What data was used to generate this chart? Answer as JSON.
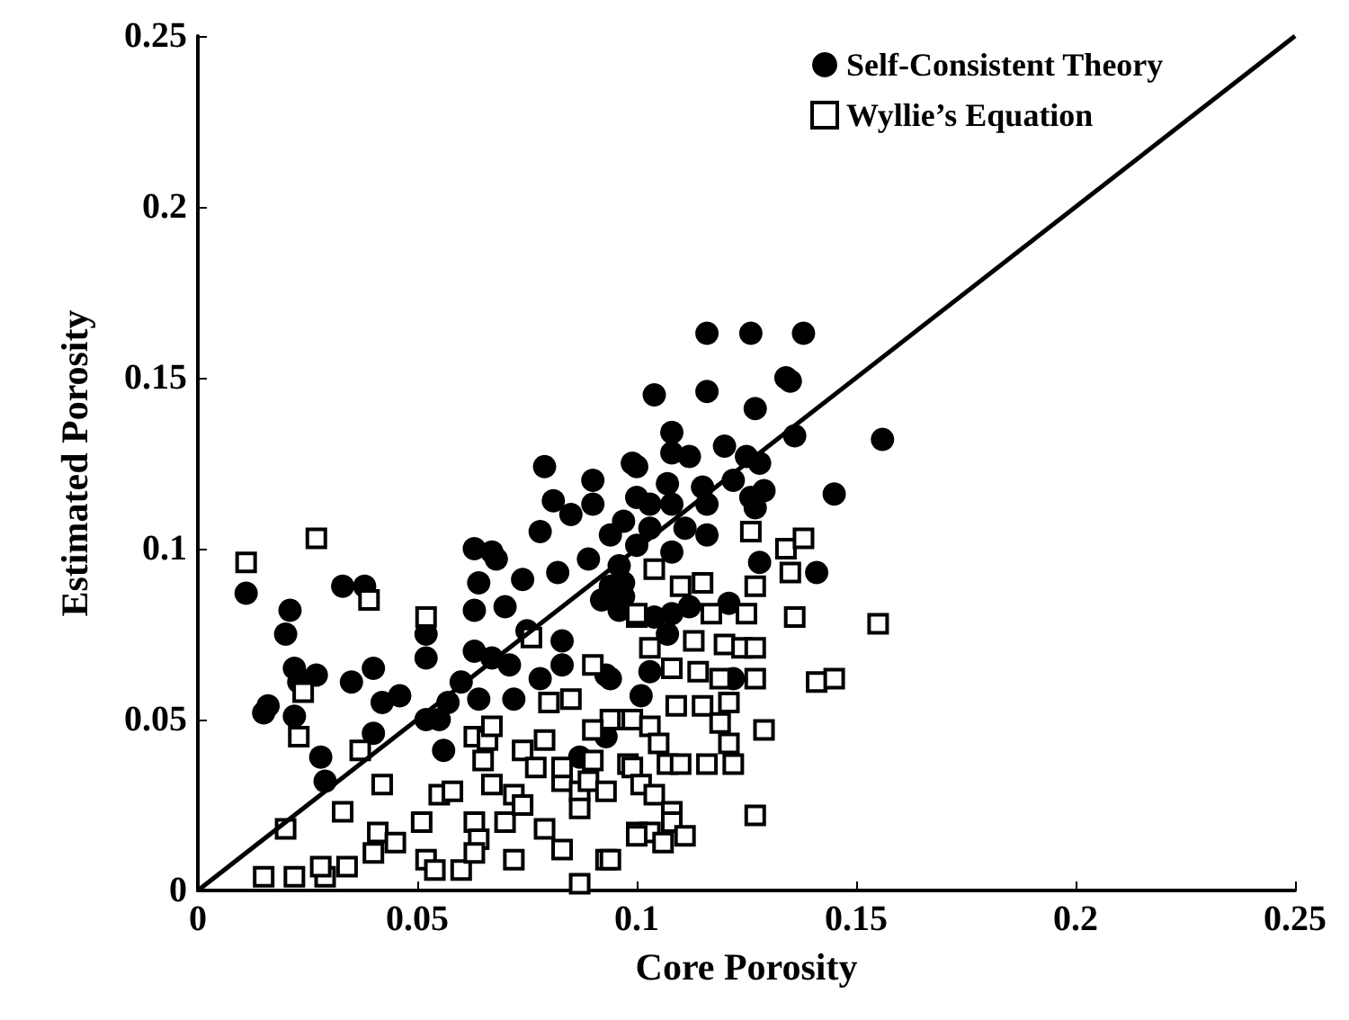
{
  "chart_data": {
    "type": "scatter",
    "xlabel": "Core Porosity",
    "ylabel": "Estimated Porosity",
    "xlim": [
      0,
      0.25
    ],
    "xticks": [
      0,
      0.05,
      0.1,
      0.15,
      0.2,
      0.25
    ],
    "ylim": [
      0,
      0.25
    ],
    "yticks": [
      0,
      0.05,
      0.1,
      0.15,
      0.2,
      0.25
    ],
    "grid": false,
    "legend": "top right",
    "series": [
      {
        "name": "Self-Consistent Theory",
        "color": "#000000",
        "marker": "circle",
        "x": [
          0.011,
          0.015,
          0.016,
          0.02,
          0.021,
          0.022,
          0.022,
          0.023,
          0.027,
          0.028,
          0.029,
          0.033,
          0.038,
          0.035,
          0.04,
          0.04,
          0.042,
          0.046,
          0.052,
          0.052,
          0.052,
          0.055,
          0.056,
          0.057,
          0.06,
          0.063,
          0.064,
          0.063,
          0.063,
          0.064,
          0.067,
          0.068,
          0.07,
          0.067,
          0.071,
          0.074,
          0.075,
          0.078,
          0.072,
          0.079,
          0.078,
          0.081,
          0.082,
          0.083,
          0.083,
          0.085,
          0.087,
          0.089,
          0.09,
          0.09,
          0.092,
          0.093,
          0.093,
          0.094,
          0.097,
          0.099,
          0.1,
          0.116,
          0.126,
          0.138,
          0.104,
          0.116,
          0.127,
          0.134,
          0.135,
          0.136,
          0.156,
          0.108,
          0.108,
          0.112,
          0.12,
          0.125,
          0.1,
          0.128,
          0.107,
          0.115,
          0.122,
          0.129,
          0.108,
          0.103,
          0.116,
          0.126,
          0.127,
          0.145,
          0.097,
          0.103,
          0.111,
          0.116,
          0.1,
          0.108,
          0.096,
          0.128,
          0.141,
          0.094,
          0.097,
          0.104,
          0.108,
          0.112,
          0.121,
          0.107,
          0.096,
          0.103,
          0.101,
          0.122,
          0.094
        ],
        "values": [
          0.087,
          0.052,
          0.054,
          0.075,
          0.082,
          0.051,
          0.065,
          0.061,
          0.063,
          0.039,
          0.032,
          0.089,
          0.089,
          0.061,
          0.065,
          0.046,
          0.055,
          0.057,
          0.075,
          0.068,
          0.05,
          0.05,
          0.041,
          0.055,
          0.061,
          0.1,
          0.09,
          0.082,
          0.07,
          0.056,
          0.099,
          0.097,
          0.083,
          0.068,
          0.066,
          0.091,
          0.076,
          0.062,
          0.056,
          0.124,
          0.105,
          0.114,
          0.093,
          0.073,
          0.066,
          0.11,
          0.039,
          0.097,
          0.12,
          0.113,
          0.085,
          0.063,
          0.045,
          0.104,
          0.09,
          0.125,
          0.115,
          0.163,
          0.163,
          0.163,
          0.145,
          0.146,
          0.141,
          0.15,
          0.149,
          0.133,
          0.132,
          0.134,
          0.128,
          0.127,
          0.13,
          0.127,
          0.124,
          0.125,
          0.119,
          0.118,
          0.12,
          0.117,
          0.113,
          0.113,
          0.113,
          0.115,
          0.112,
          0.116,
          0.108,
          0.106,
          0.106,
          0.104,
          0.101,
          0.099,
          0.095,
          0.096,
          0.093,
          0.089,
          0.086,
          0.08,
          0.081,
          0.083,
          0.084,
          0.075,
          0.082,
          0.064,
          0.057,
          0.062,
          0.062
        ]
      },
      {
        "name": "Wyllie’s Equation",
        "color": "#000000",
        "marker": "square",
        "x": [
          0.011,
          0.027,
          0.039,
          0.052,
          0.02,
          0.015,
          0.022,
          0.029,
          0.028,
          0.034,
          0.033,
          0.023,
          0.024,
          0.037,
          0.042,
          0.041,
          0.045,
          0.04,
          0.051,
          0.052,
          0.054,
          0.06,
          0.055,
          0.058,
          0.063,
          0.066,
          0.067,
          0.065,
          0.063,
          0.064,
          0.063,
          0.067,
          0.07,
          0.072,
          0.072,
          0.074,
          0.074,
          0.077,
          0.079,
          0.08,
          0.085,
          0.079,
          0.083,
          0.083,
          0.087,
          0.087,
          0.087,
          0.089,
          0.093,
          0.093,
          0.09,
          0.094,
          0.098,
          0.098,
          0.1,
          0.1,
          0.09,
          0.083,
          0.076,
          0.09,
          0.126,
          0.134,
          0.138,
          0.135,
          0.127,
          0.11,
          0.115,
          0.104,
          0.1,
          0.117,
          0.125,
          0.136,
          0.155,
          0.103,
          0.113,
          0.12,
          0.124,
          0.127,
          0.108,
          0.114,
          0.119,
          0.127,
          0.141,
          0.145,
          0.109,
          0.115,
          0.121,
          0.119,
          0.129,
          0.099,
          0.103,
          0.105,
          0.107,
          0.11,
          0.116,
          0.121,
          0.122,
          0.099,
          0.101,
          0.104,
          0.108,
          0.108,
          0.127,
          0.111,
          0.103,
          0.1,
          0.106,
          0.094
        ],
        "values": [
          0.096,
          0.103,
          0.085,
          0.08,
          0.018,
          0.004,
          0.004,
          0.004,
          0.007,
          0.007,
          0.023,
          0.045,
          0.058,
          0.041,
          0.031,
          0.017,
          0.014,
          0.011,
          0.02,
          0.009,
          0.006,
          0.006,
          0.028,
          0.029,
          0.045,
          0.044,
          0.048,
          0.038,
          0.02,
          0.015,
          0.011,
          0.031,
          0.02,
          0.009,
          0.028,
          0.025,
          0.041,
          0.036,
          0.044,
          0.055,
          0.056,
          0.018,
          0.012,
          0.032,
          0.029,
          0.002,
          0.024,
          0.032,
          0.029,
          0.009,
          0.066,
          0.05,
          0.05,
          0.037,
          0.08,
          0.017,
          0.047,
          0.036,
          0.074,
          0.038,
          0.105,
          0.1,
          0.103,
          0.093,
          0.089,
          0.089,
          0.09,
          0.094,
          0.081,
          0.081,
          0.081,
          0.08,
          0.078,
          0.071,
          0.073,
          0.072,
          0.071,
          0.071,
          0.065,
          0.064,
          0.062,
          0.062,
          0.061,
          0.062,
          0.054,
          0.054,
          0.055,
          0.049,
          0.047,
          0.05,
          0.048,
          0.043,
          0.037,
          0.037,
          0.037,
          0.043,
          0.037,
          0.036,
          0.031,
          0.028,
          0.023,
          0.02,
          0.022,
          0.016,
          0.017,
          0.016,
          0.014,
          0.009
        ]
      },
      {
        "type": "line",
        "color": "#000000",
        "line_style": "solid",
        "marker": "none",
        "x": [
          0,
          0.25
        ],
        "values": [
          0,
          0.25
        ]
      }
    ]
  }
}
